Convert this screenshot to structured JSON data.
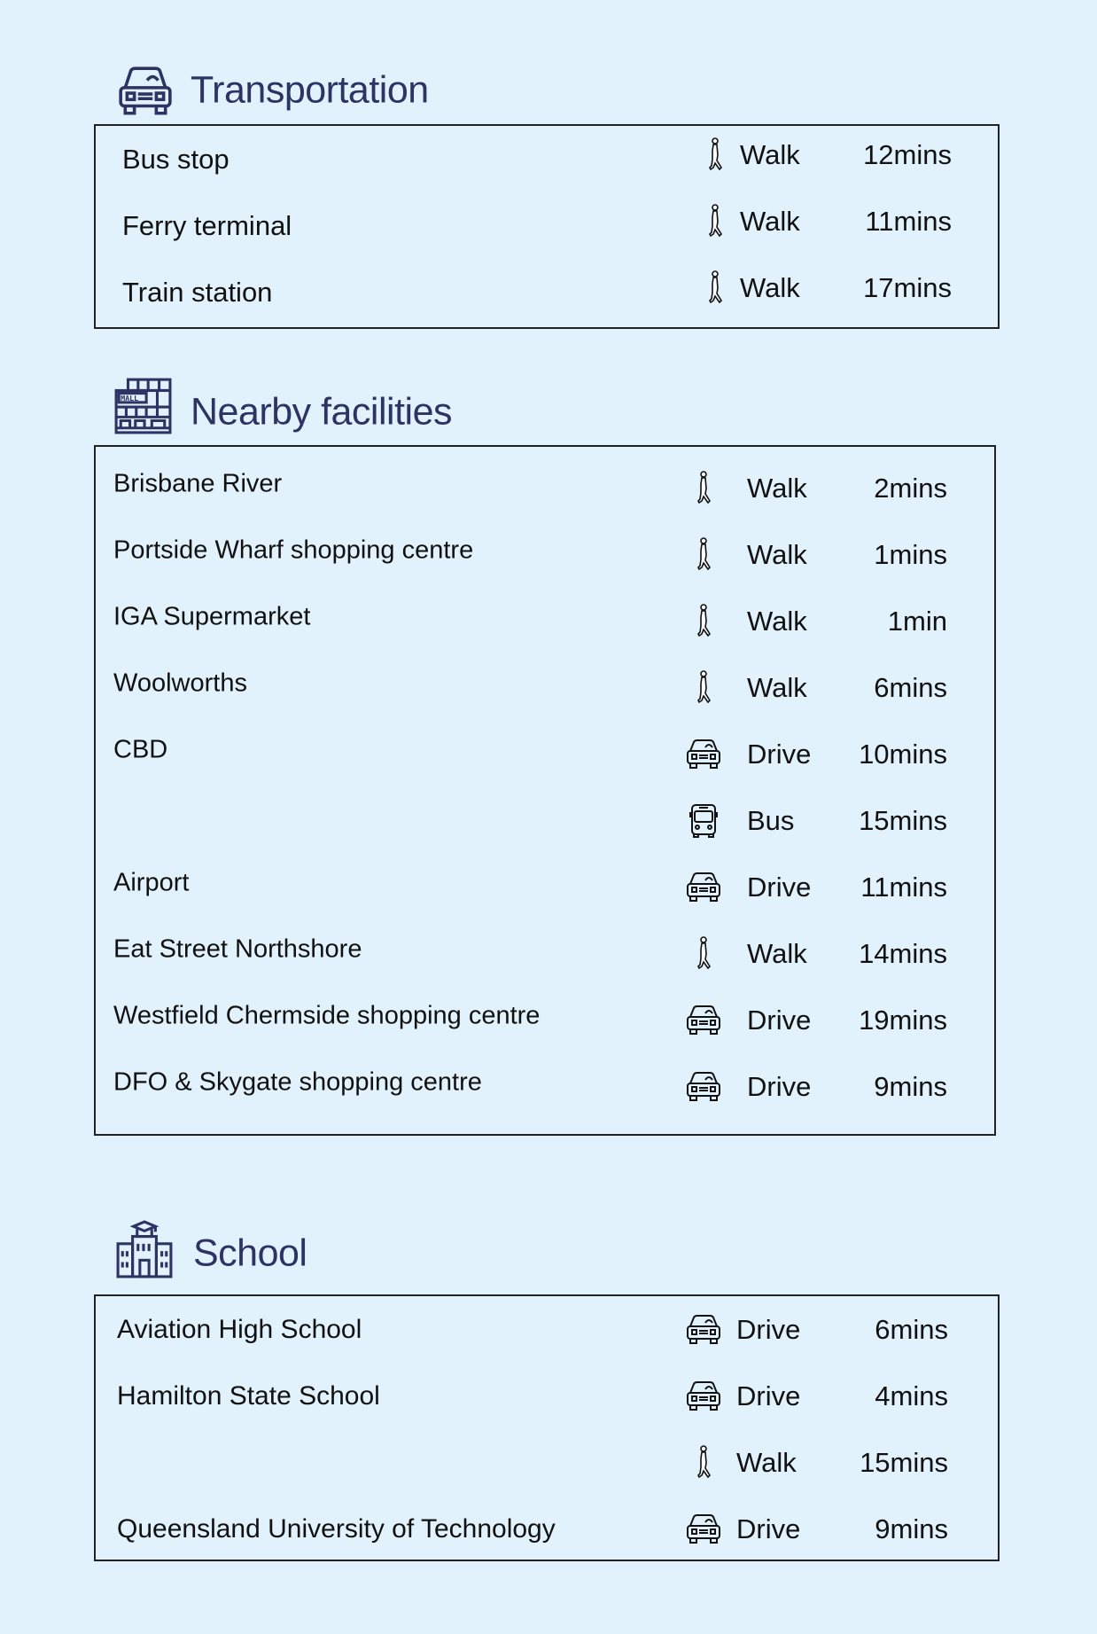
{
  "colors": {
    "background": "#e2f2fd",
    "heading": "#2d3464",
    "border": "#222222"
  },
  "sections": [
    {
      "title": "Transportation",
      "icon": "car-icon",
      "rows": [
        {
          "place": "Bus stop",
          "mode": "Walk",
          "mode_icon": "walk",
          "time": "12mins"
        },
        {
          "place": "Ferry terminal",
          "mode": "Walk",
          "mode_icon": "walk",
          "time": "11mins"
        },
        {
          "place": "Train station",
          "mode": "Walk",
          "mode_icon": "walk",
          "time": "17mins"
        }
      ]
    },
    {
      "title": "Nearby facilities",
      "icon": "mall-icon",
      "rows": [
        {
          "place": "Brisbane River",
          "mode": "Walk",
          "mode_icon": "walk",
          "time": "2mins"
        },
        {
          "place": "Portside Wharf shopping centre",
          "mode": "Walk",
          "mode_icon": "walk",
          "time": "1mins"
        },
        {
          "place": "IGA Supermarket",
          "mode": "Walk",
          "mode_icon": "walk",
          "time": "1min"
        },
        {
          "place": "Woolworths",
          "mode": "Walk",
          "mode_icon": "walk",
          "time": "6mins"
        },
        {
          "place": "CBD",
          "mode": "Drive",
          "mode_icon": "car",
          "time": "10mins"
        },
        {
          "place": "",
          "mode": "Bus",
          "mode_icon": "bus",
          "time": "15mins"
        },
        {
          "place": "Airport",
          "mode": "Drive",
          "mode_icon": "car",
          "time": "11mins"
        },
        {
          "place": "Eat Street Northshore",
          "mode": "Walk",
          "mode_icon": "walk",
          "time": "14mins"
        },
        {
          "place": "Westfield Chermside shopping centre",
          "mode": "Drive",
          "mode_icon": "car",
          "time": "19mins"
        },
        {
          "place": "DFO & Skygate shopping centre",
          "mode": "Drive",
          "mode_icon": "car",
          "time": "9mins"
        }
      ]
    },
    {
      "title": "School",
      "icon": "school-icon",
      "rows": [
        {
          "place": "Aviation High School",
          "mode": "Drive",
          "mode_icon": "car",
          "time": "6mins"
        },
        {
          "place": "Hamilton State School",
          "mode": "Drive",
          "mode_icon": "car",
          "time": "4mins"
        },
        {
          "place": "",
          "mode": "Walk",
          "mode_icon": "walk",
          "time": "15mins"
        },
        {
          "place": "Queensland University of Technology",
          "mode": "Drive",
          "mode_icon": "car",
          "time": "9mins"
        }
      ]
    }
  ]
}
